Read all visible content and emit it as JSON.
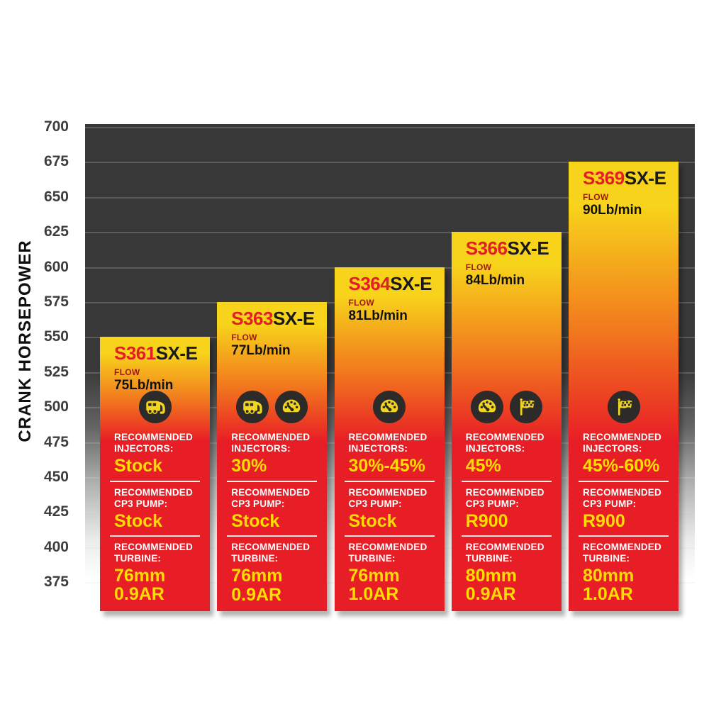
{
  "chart_data": {
    "type": "bar",
    "title": "",
    "xlabel": "",
    "ylabel": "CRANK HORSEPOWER",
    "ylim": [
      375,
      700
    ],
    "ytick_step": 25,
    "yticks": [
      700,
      675,
      650,
      625,
      600,
      575,
      550,
      525,
      500,
      475,
      450,
      425,
      400,
      375
    ],
    "grid": true,
    "legend": "none",
    "categories": [
      "S361SX-E",
      "S363SX-E",
      "S364SX-E",
      "S366SX-E",
      "S369SX-E"
    ],
    "values": [
      550,
      575,
      600,
      625,
      675
    ],
    "bars": [
      {
        "model": "S361",
        "model_suffix": "SX-E",
        "flow_label": "FLOW",
        "flow": "75Lb/min",
        "crank_hp": 550,
        "icons": [
          "camper-icon"
        ],
        "specs": [
          {
            "label": "RECOMMENDED INJECTORS:",
            "value": "Stock"
          },
          {
            "label": "RECOMMENDED CP3 PUMP:",
            "value": "Stock"
          },
          {
            "label": "RECOMMENDED TURBINE:",
            "value": "76mm\n0.9AR"
          }
        ]
      },
      {
        "model": "S363",
        "model_suffix": "SX-E",
        "flow_label": "FLOW",
        "flow": "77Lb/min",
        "crank_hp": 575,
        "icons": [
          "camper-icon",
          "gauge-icon"
        ],
        "specs": [
          {
            "label": "RECOMMENDED INJECTORS:",
            "value": "30%"
          },
          {
            "label": "RECOMMENDED CP3 PUMP:",
            "value": "Stock"
          },
          {
            "label": "RECOMMENDED TURBINE:",
            "value": "76mm\n0.9AR"
          }
        ]
      },
      {
        "model": "S364",
        "model_suffix": "SX-E",
        "flow_label": "FLOW",
        "flow": "81Lb/min",
        "crank_hp": 600,
        "icons": [
          "gauge-icon"
        ],
        "specs": [
          {
            "label": "RECOMMENDED INJECTORS:",
            "value": "30%-45%"
          },
          {
            "label": "RECOMMENDED CP3 PUMP:",
            "value": "Stock"
          },
          {
            "label": "RECOMMENDED TURBINE:",
            "value": "76mm\n1.0AR"
          }
        ]
      },
      {
        "model": "S366",
        "model_suffix": "SX-E",
        "flow_label": "FLOW",
        "flow": "84Lb/min",
        "crank_hp": 625,
        "icons": [
          "gauge-icon",
          "race-flag-icon"
        ],
        "specs": [
          {
            "label": "RECOMMENDED INJECTORS:",
            "value": "45%"
          },
          {
            "label": "RECOMMENDED CP3 PUMP:",
            "value": "R900"
          },
          {
            "label": "RECOMMENDED TURBINE:",
            "value": "80mm\n0.9AR"
          }
        ]
      },
      {
        "model": "S369",
        "model_suffix": "SX-E",
        "flow_label": "FLOW",
        "flow": "90Lb/min",
        "crank_hp": 675,
        "icons": [
          "race-flag-icon"
        ],
        "specs": [
          {
            "label": "RECOMMENDED INJECTORS:",
            "value": "45%-60%"
          },
          {
            "label": "RECOMMENDED CP3 PUMP:",
            "value": "R900"
          },
          {
            "label": "RECOMMENDED TURBINE:",
            "value": "80mm\n1.0AR"
          }
        ]
      }
    ]
  },
  "colors": {
    "plot_background": "#383838",
    "bar_gradient_yellow": "#f7d31b",
    "bar_gradient_orange": "#f2791e",
    "bar_gradient_red": "#e81e26",
    "model_number_red": "#e31e25",
    "model_suffix_black": "#1a1a1a",
    "flow_label_red": "#9e1b12",
    "flow_value_black": "#111111",
    "spec_label_white": "#ffffff",
    "spec_value_yellow": "#ffdd00",
    "axis_text": "#3d3d3d",
    "icon_circle": "#2d2a2a",
    "icon_glyph": "#f2d51e"
  }
}
